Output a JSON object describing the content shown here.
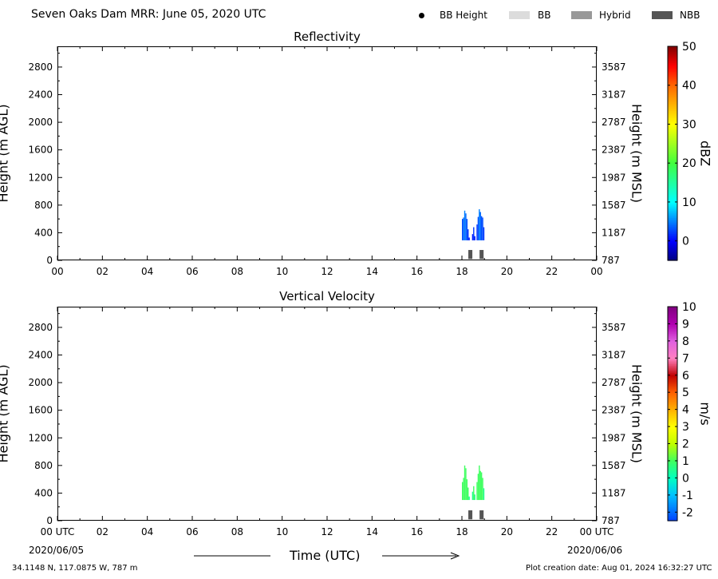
{
  "figure": {
    "title": "Seven Oaks Dam MRR:  June 05, 2020 UTC",
    "footer_left": "34.1148 N, 117.0875 W, 787 m",
    "footer_right": "Plot creation date: Aug 01, 2024 16:32:27 UTC",
    "date_start": "2020/06/05",
    "date_end": "2020/06/06",
    "x_axis_label": "Time (UTC)"
  },
  "legend": [
    {
      "label": "BB Height",
      "kind": "dot",
      "color": "#000000"
    },
    {
      "label": "BB",
      "kind": "box",
      "color": "#dcdcdc"
    },
    {
      "label": "Hybrid",
      "kind": "box",
      "color": "#999999"
    },
    {
      "label": "NBB",
      "kind": "box",
      "color": "#555555"
    }
  ],
  "chart_data": [
    {
      "type": "heatmap",
      "title": "Reflectivity",
      "xlabel": "",
      "ylabel": "Height (m AGL)",
      "ylabel_right": "Height (m MSL)",
      "xlim": [
        0,
        24
      ],
      "ylim": [
        0,
        3100
      ],
      "x_ticks": [
        "00",
        "02",
        "04",
        "06",
        "08",
        "10",
        "12",
        "14",
        "16",
        "18",
        "20",
        "22",
        "00"
      ],
      "y_ticks_left": [
        "0",
        "400",
        "800",
        "1200",
        "1600",
        "2000",
        "2400",
        "2800"
      ],
      "y_ticks_right": [
        "787",
        "1187",
        "1587",
        "1987",
        "2387",
        "2787",
        "3187",
        "3587"
      ],
      "colorbar": {
        "label": "dBZ",
        "min": -5,
        "max": 50,
        "ticks": [
          "0",
          "10",
          "20",
          "30",
          "40",
          "50"
        ]
      },
      "echo_profile": [
        {
          "t": 18.0,
          "top": 600,
          "value": 3
        },
        {
          "t": 18.05,
          "top": 620,
          "value": 4
        },
        {
          "t": 18.1,
          "top": 720,
          "value": 5
        },
        {
          "t": 18.15,
          "top": 680,
          "value": 4
        },
        {
          "t": 18.2,
          "top": 600,
          "value": 3
        },
        {
          "t": 18.25,
          "top": 450,
          "value": 2
        },
        {
          "t": 18.3,
          "top": 330,
          "value": 1
        },
        {
          "t": 18.45,
          "top": 380,
          "value": 1
        },
        {
          "t": 18.5,
          "top": 480,
          "value": 2
        },
        {
          "t": 18.55,
          "top": 350,
          "value": 1
        },
        {
          "t": 18.65,
          "top": 520,
          "value": 2
        },
        {
          "t": 18.7,
          "top": 630,
          "value": 3
        },
        {
          "t": 18.75,
          "top": 740,
          "value": 5
        },
        {
          "t": 18.8,
          "top": 700,
          "value": 4
        },
        {
          "t": 18.85,
          "top": 640,
          "value": 3
        },
        {
          "t": 18.9,
          "top": 620,
          "value": 3
        },
        {
          "t": 18.95,
          "top": 480,
          "value": 2
        }
      ],
      "echo_base": 290,
      "bb_markers": [
        {
          "start": 18.25,
          "end": 18.5,
          "type": "NBB"
        },
        {
          "start": 18.75,
          "end": 19.0,
          "type": "NBB"
        }
      ]
    },
    {
      "type": "heatmap",
      "title": "Vertical Velocity",
      "xlabel": "Time (UTC)",
      "ylabel": "Height (m AGL)",
      "ylabel_right": "Height (m MSL)",
      "xlim": [
        0,
        24
      ],
      "ylim": [
        0,
        3100
      ],
      "x_ticks": [
        "00 UTC",
        "02",
        "04",
        "06",
        "08",
        "10",
        "12",
        "14",
        "16",
        "18",
        "20",
        "22",
        "00 UTC"
      ],
      "y_ticks_left": [
        "0",
        "400",
        "800",
        "1200",
        "1600",
        "2000",
        "2400",
        "2800"
      ],
      "y_ticks_right": [
        "787",
        "1187",
        "1587",
        "1987",
        "2387",
        "2787",
        "3187",
        "3587"
      ],
      "colorbar": {
        "label": "m/s",
        "min": -2.5,
        "max": 10,
        "ticks": [
          "-2",
          "-1",
          "0",
          "1",
          "2",
          "3",
          "4",
          "5",
          "6",
          "7",
          "8",
          "9",
          "10"
        ]
      },
      "echo_profile": [
        {
          "t": 18.0,
          "top": 560,
          "value": 1
        },
        {
          "t": 18.05,
          "top": 620,
          "value": 1
        },
        {
          "t": 18.1,
          "top": 800,
          "value": 1
        },
        {
          "t": 18.15,
          "top": 760,
          "value": 1
        },
        {
          "t": 18.2,
          "top": 600,
          "value": 1
        },
        {
          "t": 18.25,
          "top": 480,
          "value": 1
        },
        {
          "t": 18.3,
          "top": 350,
          "value": 0.5
        },
        {
          "t": 18.45,
          "top": 420,
          "value": 0.5
        },
        {
          "t": 18.5,
          "top": 500,
          "value": 1
        },
        {
          "t": 18.55,
          "top": 380,
          "value": 0.5
        },
        {
          "t": 18.65,
          "top": 560,
          "value": 1
        },
        {
          "t": 18.7,
          "top": 680,
          "value": 1
        },
        {
          "t": 18.75,
          "top": 800,
          "value": 1
        },
        {
          "t": 18.8,
          "top": 720,
          "value": 1
        },
        {
          "t": 18.85,
          "top": 700,
          "value": 1
        },
        {
          "t": 18.9,
          "top": 620,
          "value": 1
        },
        {
          "t": 18.95,
          "top": 470,
          "value": 0.5
        }
      ],
      "echo_base": 300,
      "bb_markers": [
        {
          "start": 18.25,
          "end": 18.5,
          "type": "NBB"
        },
        {
          "start": 18.75,
          "end": 19.0,
          "type": "NBB"
        }
      ]
    }
  ]
}
